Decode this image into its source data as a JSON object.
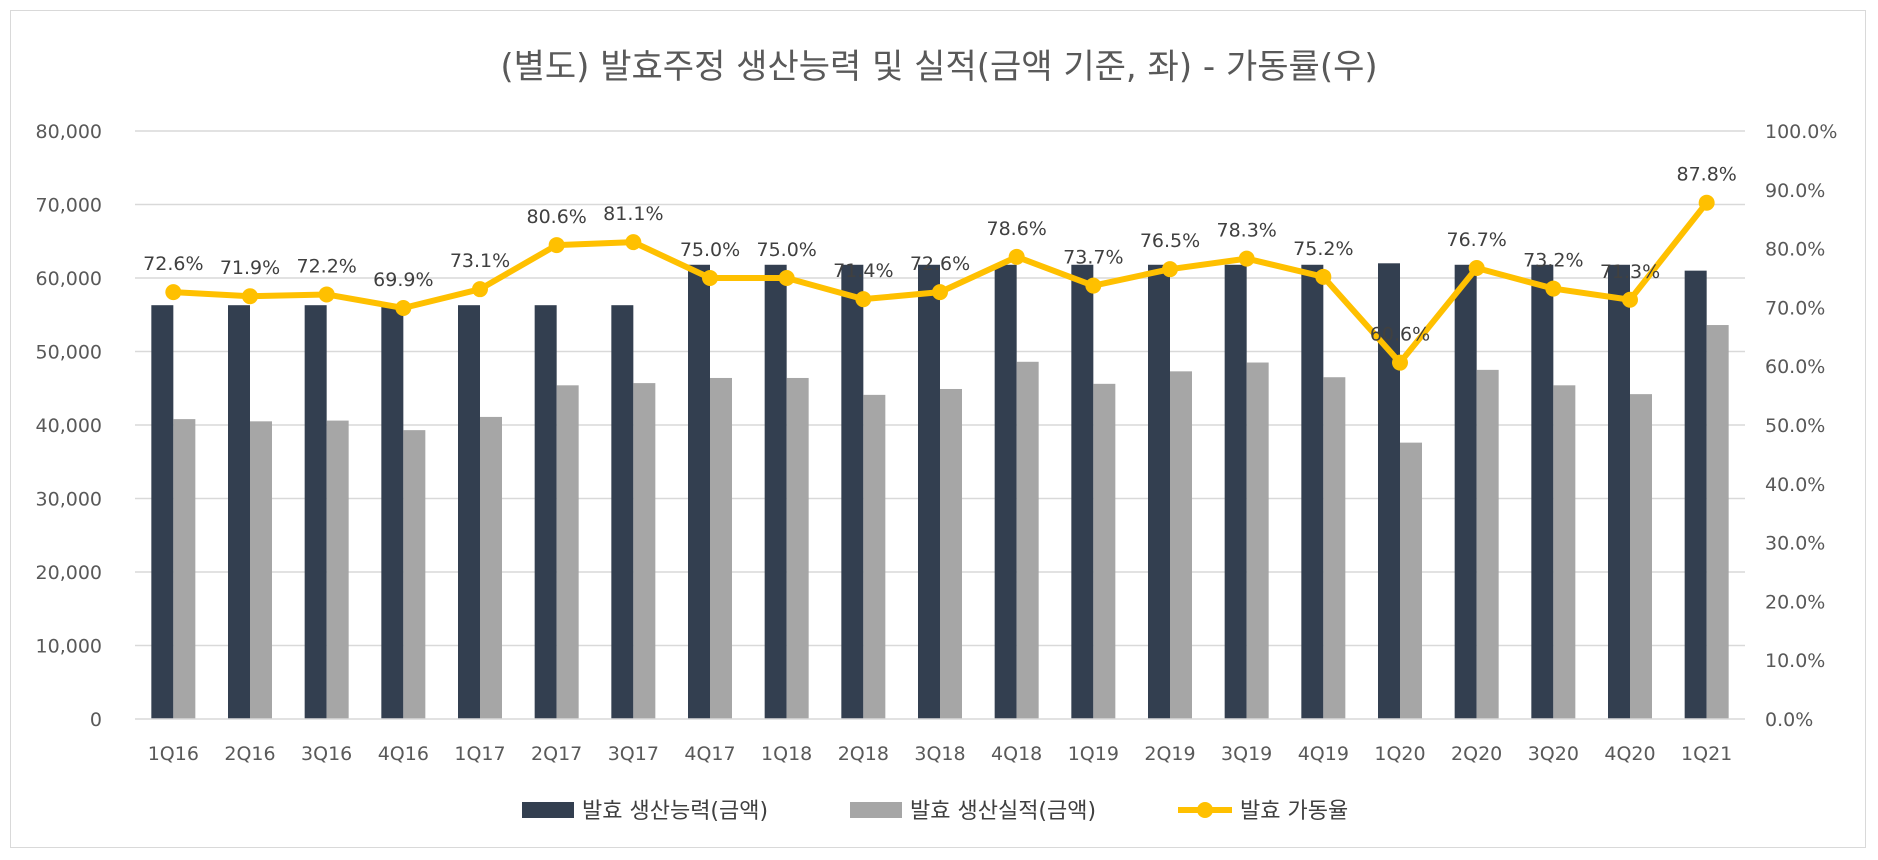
{
  "chart_data": {
    "type": "bar",
    "title": "(별도) 발효주정 생산능력 및 실적(금액 기준, 좌) - 가동률(우)",
    "categories": [
      "1Q16",
      "2Q16",
      "3Q16",
      "4Q16",
      "1Q17",
      "2Q17",
      "3Q17",
      "4Q17",
      "1Q18",
      "2Q18",
      "3Q18",
      "4Q18",
      "1Q19",
      "2Q19",
      "3Q19",
      "4Q19",
      "1Q20",
      "2Q20",
      "3Q20",
      "4Q20",
      "1Q21"
    ],
    "series": [
      {
        "name": "발효 생산능력(금액)",
        "type": "bar",
        "axis": "left",
        "color": "#333f50",
        "values": [
          56300,
          56300,
          56300,
          56300,
          56300,
          56300,
          56300,
          61800,
          61800,
          61800,
          61800,
          61800,
          61800,
          61800,
          61800,
          61800,
          62000,
          61800,
          61800,
          61800,
          61000
        ]
      },
      {
        "name": "발효 생산실적(금액)",
        "type": "bar",
        "axis": "left",
        "color": "#a6a6a6",
        "values": [
          40800,
          40500,
          40600,
          39300,
          41100,
          45400,
          45700,
          46400,
          46400,
          44100,
          44900,
          48600,
          45600,
          47300,
          48500,
          46500,
          37600,
          47500,
          45400,
          44200,
          53600
        ]
      },
      {
        "name": "발효 가동율",
        "type": "line",
        "axis": "right",
        "color": "#ffc000",
        "values": [
          72.6,
          71.9,
          72.2,
          69.9,
          73.1,
          80.6,
          81.1,
          75.0,
          75.0,
          71.4,
          72.6,
          78.6,
          73.7,
          76.5,
          78.3,
          75.2,
          60.6,
          76.7,
          73.2,
          71.3,
          87.8
        ],
        "labels": [
          "72.6%",
          "71.9%",
          "72.2%",
          "69.9%",
          "73.1%",
          "80.6%",
          "81.1%",
          "75.0%",
          "75.0%",
          "71.4%",
          "72.6%",
          "78.6%",
          "73.7%",
          "76.5%",
          "78.3%",
          "75.2%",
          "60.6%",
          "76.7%",
          "73.2%",
          "71.3%",
          "87.8%"
        ]
      }
    ],
    "y_left": {
      "min": 0,
      "max": 80000,
      "ticks": [
        "0",
        "10,000",
        "20,000",
        "30,000",
        "40,000",
        "50,000",
        "60,000",
        "70,000",
        "80,000"
      ]
    },
    "y_right": {
      "min": 0,
      "max": 100,
      "ticks": [
        "0.0%",
        "10.0%",
        "20.0%",
        "30.0%",
        "40.0%",
        "50.0%",
        "60.0%",
        "70.0%",
        "80.0%",
        "90.0%",
        "100.0%"
      ]
    },
    "grid": true,
    "legend": "bottom"
  }
}
